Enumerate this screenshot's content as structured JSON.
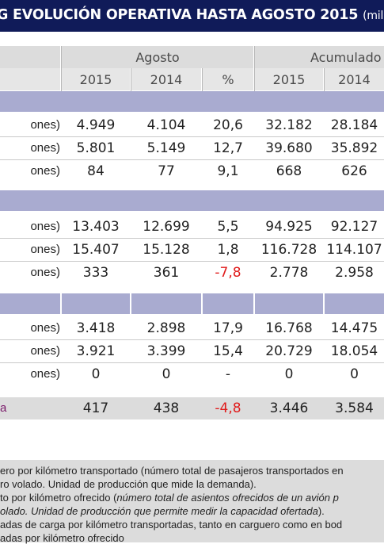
{
  "title": {
    "main": "G EVOLUCIÓN OPERATIVA HASTA AGOSTO 2015",
    "unit": "(millon"
  },
  "headers": {
    "group1": "Agosto",
    "group2": "Acumulado",
    "cols": [
      "2015",
      "2014",
      "%",
      "2015",
      "2014"
    ]
  },
  "section1": {
    "rows": [
      {
        "label": "ones)",
        "c1": "4.949",
        "c2": "4.104",
        "c3": "20,6",
        "c4": "32.182",
        "c5": "28.184"
      },
      {
        "label": "ones)",
        "c1": "5.801",
        "c2": "5.149",
        "c3": "12,7",
        "c4": "39.680",
        "c5": "35.892"
      },
      {
        "label": "ones)",
        "c1": "84",
        "c2": "77",
        "c3": "9,1",
        "c4": "668",
        "c5": "626"
      }
    ]
  },
  "section2": {
    "rows": [
      {
        "label": "ones)",
        "c1": "13.403",
        "c2": "12.699",
        "c3": "5,5",
        "c4": "94.925",
        "c5": "92.127"
      },
      {
        "label": "ones)",
        "c1": "15.407",
        "c2": "15.128",
        "c3": "1,8",
        "c4": "116.728",
        "c5": "114.107"
      },
      {
        "label": "ones)",
        "c1": "333",
        "c2": "361",
        "c3": "-7,8",
        "c4": "2.778",
        "c5": "2.958"
      }
    ]
  },
  "section3": {
    "rows": [
      {
        "label": "ones)",
        "c1": "3.418",
        "c2": "2.898",
        "c3": "17,9",
        "c4": "16.768",
        "c5": "14.475"
      },
      {
        "label": "ones)",
        "c1": "3.921",
        "c2": "3.399",
        "c3": "15,4",
        "c4": "20.729",
        "c5": "18.054"
      },
      {
        "label": "ones)",
        "c1": "0",
        "c2": "0",
        "c3": "-",
        "c4": "0",
        "c5": "0"
      }
    ]
  },
  "total": {
    "label": "a",
    "c1": "417",
    "c2": "438",
    "c3": "-4,8",
    "c4": "3.446",
    "c5": "3.584"
  },
  "notes": {
    "n1": "ero por kilómetro transportado (número total de pasajeros transportados en",
    "n2": "ro volado. Unidad de producción que mide la demanda).",
    "n3a": "to por kilómetro ofrecido (",
    "n3b": "número total de asientos ofrecidos de un avión p",
    "n4": "olado. Unidad de producción que permite medir la capacidad ofertada",
    "n4b": ").",
    "n5": "adas de carga por kilómetro transportadas, tanto en carguero como en bod",
    "n6": "adas por kilómetro ofrecido"
  },
  "colors": {
    "title_bg": "#101b59",
    "band": "#a9abd0",
    "header_bg": "#dcdcdc",
    "negative": "#e01b1b"
  }
}
